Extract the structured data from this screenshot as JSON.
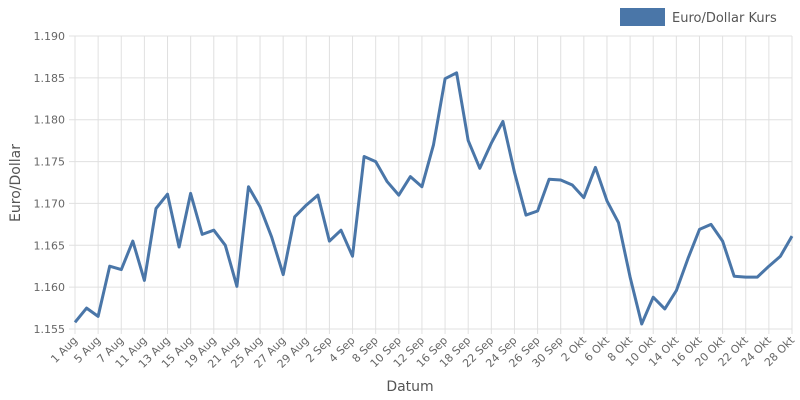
{
  "chart_data": {
    "type": "line",
    "title": "",
    "xlabel": "Datum",
    "ylabel": "Euro/Dollar",
    "ylim": [
      1.155,
      1.19
    ],
    "yticks": [
      "1.155",
      "1.160",
      "1.165",
      "1.170",
      "1.175",
      "1.180",
      "1.185",
      "1.190"
    ],
    "grid": true,
    "legend_placement": "top-right",
    "x": [
      "1 Aug",
      "4 Aug",
      "5 Aug",
      "6 Aug",
      "7 Aug",
      "8 Aug",
      "11 Aug",
      "12 Aug",
      "13 Aug",
      "14 Aug",
      "15 Aug",
      "18 Aug",
      "19 Aug",
      "20 Aug",
      "21 Aug",
      "22 Aug",
      "25 Aug",
      "26 Aug",
      "27 Aug",
      "28 Aug",
      "29 Aug",
      "1 Sep",
      "2 Sep",
      "3 Sep",
      "4 Sep",
      "5 Sep",
      "8 Sep",
      "9 Sep",
      "10 Sep",
      "11 Sep",
      "12 Sep",
      "15 Sep",
      "16 Sep",
      "17 Sep",
      "18 Sep",
      "19 Sep",
      "22 Sep",
      "23 Sep",
      "24 Sep",
      "25 Sep",
      "26 Sep",
      "29 Sep",
      "30 Sep",
      "1 Okt",
      "2 Okt",
      "3 Okt",
      "6 Okt",
      "7 Okt",
      "8 Okt",
      "9 Okt",
      "10 Okt",
      "13 Okt",
      "14 Okt",
      "15 Okt",
      "16 Okt",
      "17 Okt",
      "20 Okt",
      "21 Okt",
      "22 Okt",
      "23 Okt",
      "24 Okt",
      "27 Okt",
      "28 Okt"
    ],
    "xtick_labels": [
      "1 Aug",
      "5 Aug",
      "7 Aug",
      "11 Aug",
      "13 Aug",
      "15 Aug",
      "19 Aug",
      "21 Aug",
      "25 Aug",
      "27 Aug",
      "29 Aug",
      "2 Sep",
      "4 Sep",
      "8 Sep",
      "10 Sep",
      "12 Sep",
      "16 Sep",
      "18 Sep",
      "22 Sep",
      "24 Sep",
      "26 Sep",
      "30 Sep",
      "2 Okt",
      "6 Okt",
      "8 Okt",
      "10 Okt",
      "14 Okt",
      "16 Okt",
      "20 Okt",
      "22 Okt",
      "24 Okt",
      "28 Okt"
    ],
    "series": [
      {
        "name": "Euro/Dollar Kurs",
        "color": "#4a76a8",
        "values": [
          1.1558,
          1.1575,
          1.1565,
          1.1625,
          1.1621,
          1.1655,
          1.1608,
          1.1694,
          1.1711,
          1.1648,
          1.1712,
          1.1663,
          1.1668,
          1.165,
          1.1601,
          1.172,
          1.1696,
          1.166,
          1.1615,
          1.1684,
          1.1698,
          1.171,
          1.1655,
          1.1668,
          1.1637,
          1.1756,
          1.175,
          1.1726,
          1.171,
          1.1732,
          1.172,
          1.177,
          1.1849,
          1.1856,
          1.1775,
          1.1742,
          1.1772,
          1.1798,
          1.1737,
          1.1686,
          1.1691,
          1.1729,
          1.1728,
          1.1722,
          1.1707,
          1.1743,
          1.1703,
          1.1677,
          1.1612,
          1.1556,
          1.1588,
          1.1574,
          1.1596,
          1.1634,
          1.1669,
          1.1675,
          1.1655,
          1.1613,
          1.1612,
          1.1612,
          1.1625,
          1.1637,
          1.1661
        ]
      }
    ]
  }
}
